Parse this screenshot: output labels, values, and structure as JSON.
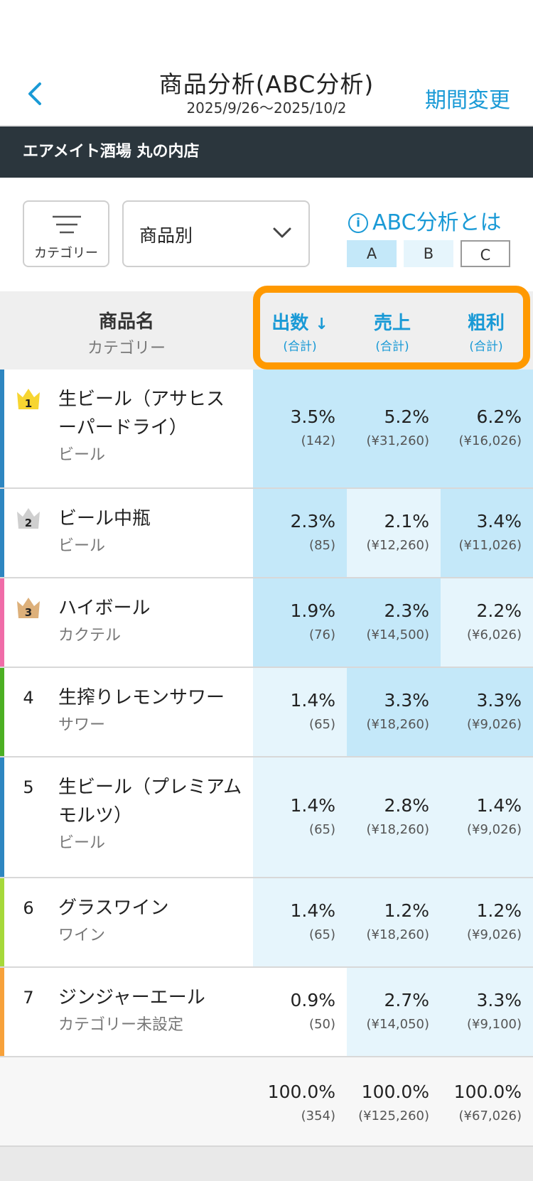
{
  "header": {
    "title": "商品分析(ABC分析)",
    "period": "2025/9/26〜2025/10/2",
    "change_label": "期間変更"
  },
  "store_name": "エアメイト酒場 丸の内店",
  "controls": {
    "category_label": "カテゴリー",
    "select_value": "商品別",
    "abc_link": "ABC分析とは",
    "legend": [
      "A",
      "B",
      "C"
    ]
  },
  "colors": {
    "accent": "#1a9ad6",
    "grade_a": "#c4e8f9",
    "grade_b": "#e6f5fc",
    "grade_c": "#ffffff",
    "highlight": "#ff9900",
    "store_bar": "#2b363d"
  },
  "table": {
    "head_name": "商品名",
    "head_category": "カテゴリー",
    "columns": [
      {
        "label": "出数",
        "sub": "(合計)",
        "sorted": true
      },
      {
        "label": "売上",
        "sub": "(合計)"
      },
      {
        "label": "粗利",
        "sub": "(合計)"
      }
    ],
    "rows": [
      {
        "rank": "1",
        "crown": "gold",
        "name": "生ビール（アサヒスーパードライ）",
        "category": "ビール",
        "bar_color": "#2e86c1",
        "cells": [
          {
            "pct": "3.5%",
            "sub": "(142)",
            "grade": "A"
          },
          {
            "pct": "5.2%",
            "sub": "(¥31,260)",
            "grade": "A"
          },
          {
            "pct": "6.2%",
            "sub": "(¥16,026)",
            "grade": "A"
          }
        ]
      },
      {
        "rank": "2",
        "crown": "silver",
        "name": "ビール中瓶",
        "category": "ビール",
        "bar_color": "#2e86c1",
        "cells": [
          {
            "pct": "2.3%",
            "sub": "(85)",
            "grade": "A"
          },
          {
            "pct": "2.1%",
            "sub": "(¥12,260)",
            "grade": "B"
          },
          {
            "pct": "3.4%",
            "sub": "(¥11,026)",
            "grade": "A"
          }
        ]
      },
      {
        "rank": "3",
        "crown": "bronze",
        "name": "ハイボール",
        "category": "カクテル",
        "bar_color": "#f06ca8",
        "cells": [
          {
            "pct": "1.9%",
            "sub": "(76)",
            "grade": "A"
          },
          {
            "pct": "2.3%",
            "sub": "(¥14,500)",
            "grade": "A"
          },
          {
            "pct": "2.2%",
            "sub": "(¥6,026)",
            "grade": "B"
          }
        ]
      },
      {
        "rank": "4",
        "crown": "",
        "name": "生搾りレモンサワー",
        "category": "サワー",
        "bar_color": "#4caf22",
        "cells": [
          {
            "pct": "1.4%",
            "sub": "(65)",
            "grade": "B"
          },
          {
            "pct": "3.3%",
            "sub": "(¥18,260)",
            "grade": "A"
          },
          {
            "pct": "3.3%",
            "sub": "(¥9,026)",
            "grade": "A"
          }
        ]
      },
      {
        "rank": "5",
        "crown": "",
        "name": "生ビール（プレミアムモルツ）",
        "category": "ビール",
        "bar_color": "#2e86c1",
        "cells": [
          {
            "pct": "1.4%",
            "sub": "(65)",
            "grade": "B"
          },
          {
            "pct": "2.8%",
            "sub": "(¥18,260)",
            "grade": "B"
          },
          {
            "pct": "1.4%",
            "sub": "(¥9,026)",
            "grade": "B"
          }
        ]
      },
      {
        "rank": "6",
        "crown": "",
        "name": "グラスワイン",
        "category": "ワイン",
        "bar_color": "#a6d93a",
        "cells": [
          {
            "pct": "1.4%",
            "sub": "(65)",
            "grade": "B"
          },
          {
            "pct": "1.2%",
            "sub": "(¥18,260)",
            "grade": "B"
          },
          {
            "pct": "1.2%",
            "sub": "(¥9,026)",
            "grade": "B"
          }
        ]
      },
      {
        "rank": "7",
        "crown": "",
        "name": "ジンジャーエール",
        "category": "カテゴリー未設定",
        "bar_color": "#f7a13a",
        "cells": [
          {
            "pct": "0.9%",
            "sub": "(50)",
            "grade": "C"
          },
          {
            "pct": "2.7%",
            "sub": "(¥14,050)",
            "grade": "B"
          },
          {
            "pct": "3.3%",
            "sub": "(¥9,100)",
            "grade": "B"
          }
        ]
      }
    ],
    "totals": [
      {
        "pct": "100.0%",
        "sub": "(354)"
      },
      {
        "pct": "100.0%",
        "sub": "(¥125,260)"
      },
      {
        "pct": "100.0%",
        "sub": "(¥67,026)"
      }
    ]
  }
}
